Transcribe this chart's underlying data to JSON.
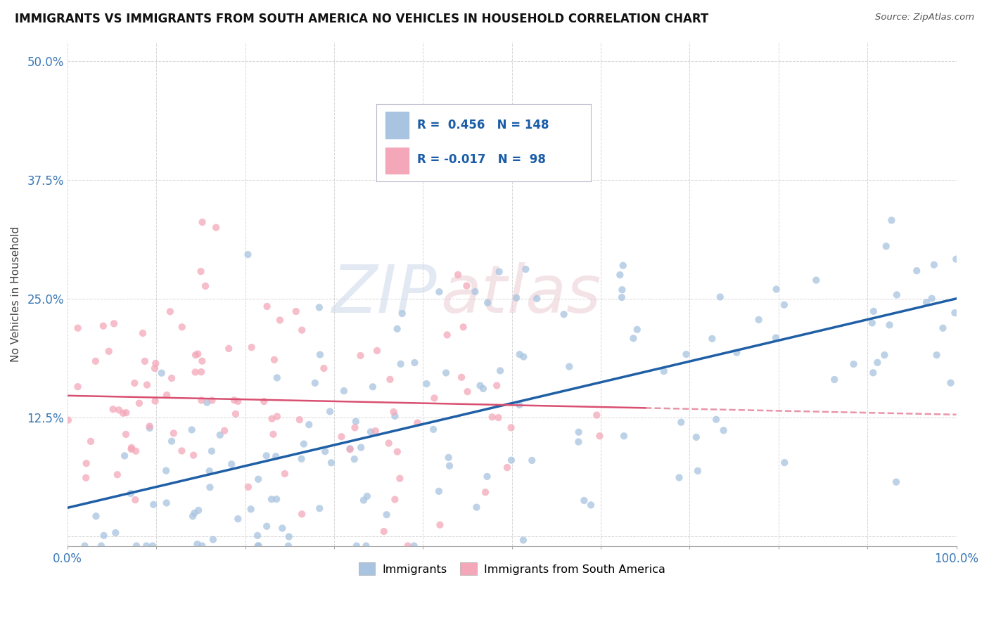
{
  "title": "IMMIGRANTS VS IMMIGRANTS FROM SOUTH AMERICA NO VEHICLES IN HOUSEHOLD CORRELATION CHART",
  "source": "Source: ZipAtlas.com",
  "ylabel": "No Vehicles in Household",
  "xlim": [
    0.0,
    1.0
  ],
  "ylim": [
    -0.01,
    0.52
  ],
  "yticks": [
    0.0,
    0.125,
    0.25,
    0.375,
    0.5
  ],
  "ytick_labels": [
    "",
    "12.5%",
    "25.0%",
    "37.5%",
    "50.0%"
  ],
  "xtick_labels": [
    "0.0%",
    "",
    "",
    "",
    "",
    "",
    "",
    "",
    "",
    "",
    "100.0%"
  ],
  "blue_R": 0.456,
  "blue_N": 148,
  "pink_R": -0.017,
  "pink_N": 98,
  "blue_color": "#a8c4e0",
  "pink_color": "#f4a7b9",
  "blue_line_color": "#1f5fa6",
  "pink_line_color": "#d94f70",
  "watermark_color": "#d0d8e8",
  "watermark_color2": "#e8d0d8",
  "legend_label_blue": "Immigrants",
  "legend_label_pink": "Immigrants from South America",
  "blue_line_y0": 0.03,
  "blue_line_y1": 0.25,
  "pink_line_y0": 0.148,
  "pink_line_y1": 0.135,
  "pink_line_x1": 0.65,
  "seed": 42
}
